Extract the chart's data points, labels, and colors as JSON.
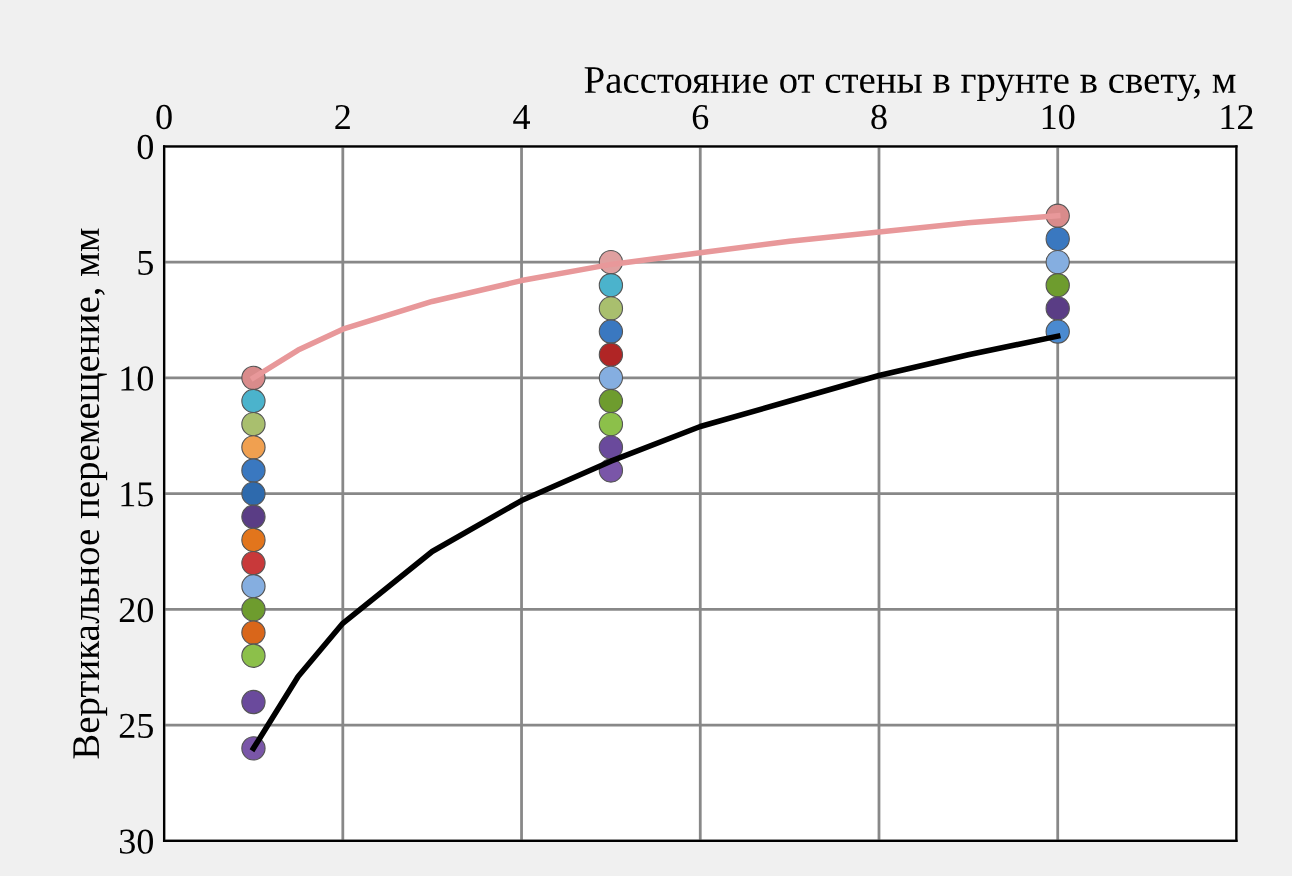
{
  "chart_data": {
    "type": "scatter",
    "xlabel": "Расстояние от стены в грунте в свету, м",
    "ylabel": "Вертикальное перемещение, мм",
    "xlim": [
      0,
      12
    ],
    "xticks": [
      0,
      2,
      4,
      6,
      8,
      10,
      12
    ],
    "ylim": [
      30,
      0
    ],
    "yticks": [
      0,
      5,
      10,
      15,
      20,
      25,
      30
    ],
    "grid": true,
    "marker": "circle",
    "series": [
      {
        "x": [
          1,
          1,
          1,
          1,
          1,
          1,
          1,
          1,
          1,
          1,
          1,
          1,
          1,
          1,
          1,
          5,
          5,
          5,
          5,
          5,
          5,
          5,
          5,
          5,
          5,
          10,
          10,
          10,
          10,
          10,
          10
        ],
        "values": [
          10,
          11,
          12,
          13,
          14,
          15,
          16,
          17,
          18,
          19,
          20,
          21,
          22,
          24,
          26,
          5,
          6,
          7,
          8,
          9,
          10,
          11,
          12,
          13,
          14,
          3,
          4,
          5,
          6,
          7,
          8
        ],
        "colors": [
          "#d98b8b",
          "#4bb3cc",
          "#a9bf6e",
          "#f0a050",
          "#3a78c0",
          "#2e6aad",
          "#5a3d85",
          "#e2751c",
          "#c8393a",
          "#85aee0",
          "#6e9c2e",
          "#d9661a",
          "#8cc04a",
          "#6a4a9c",
          "#7a56a8",
          "#e0a0a0",
          "#4bb3cc",
          "#a9bf6e",
          "#3a78c0",
          "#b02525",
          "#85aee0",
          "#6e9c2e",
          "#8cc04a",
          "#6a4a9c",
          "#7a56a8",
          "#d98b8b",
          "#3a78c0",
          "#85aee0",
          "#6e9c2e",
          "#5a3d85",
          "#4a8ad0"
        ]
      },
      {
        "type": "line",
        "color": "#e8989a",
        "marker": "none",
        "x": [
          1,
          1.5,
          2,
          3,
          4,
          5,
          6,
          7,
          8,
          9,
          10
        ],
        "values": [
          10,
          8.8,
          7.9,
          6.7,
          5.8,
          5.1,
          4.6,
          4.1,
          3.7,
          3.3,
          3.0
        ]
      },
      {
        "type": "line",
        "color": "#000000",
        "marker": "none",
        "x": [
          1,
          1.5,
          2,
          3,
          4,
          5,
          6,
          7,
          8,
          9,
          10
        ],
        "values": [
          26,
          22.9,
          20.6,
          17.5,
          15.3,
          13.6,
          12.1,
          11.0,
          9.9,
          9.0,
          8.2
        ]
      }
    ]
  }
}
